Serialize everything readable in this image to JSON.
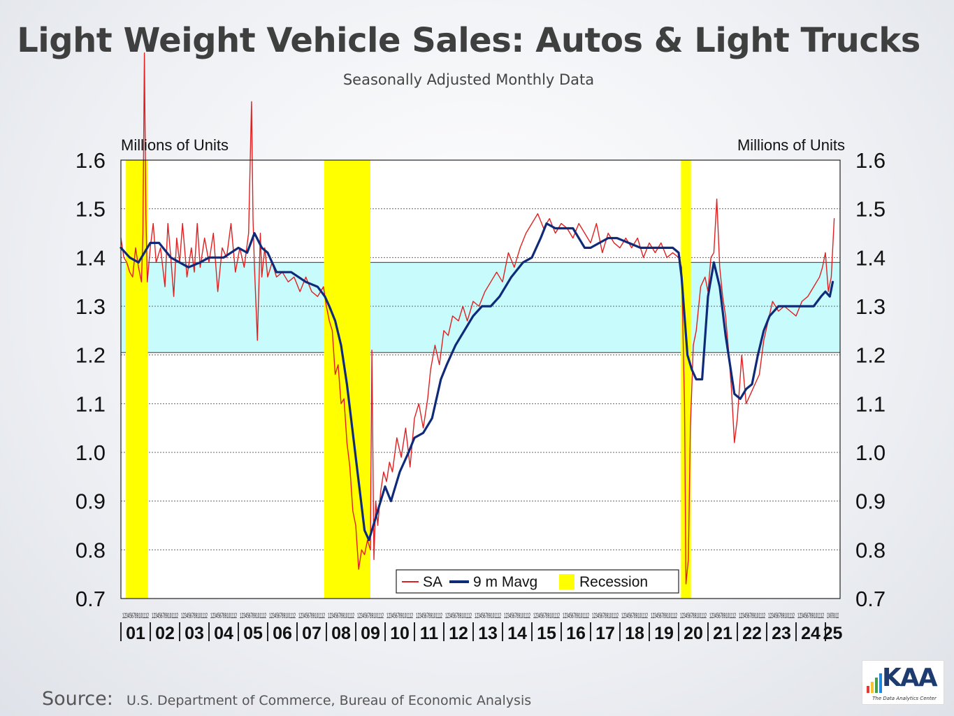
{
  "title": "Light Weight Vehicle Sales: Autos & Light Trucks",
  "subtitle": "Seasonally Adjusted Monthly Data",
  "source_label": "Source:",
  "source_text": "U.S. Department of Commerce, Bureau of Economic Analysis",
  "logo": {
    "word": "KAA",
    "tagline": "The Data Analytics Center"
  },
  "chart_data": {
    "type": "line",
    "left_axis_label": "Millions of Units",
    "right_axis_label": "Millions of Units",
    "ylim": [
      0.7,
      1.6
    ],
    "yticks": [
      "0.7",
      "0.8",
      "0.9",
      "1.0",
      "1.1",
      "1.2",
      "1.3",
      "1.4",
      "1.5",
      "1.6"
    ],
    "xlim": [
      2001.0,
      2025.5
    ],
    "year_labels": [
      "01",
      "02",
      "03",
      "04",
      "05",
      "06",
      "07",
      "08",
      "09",
      "10",
      "11",
      "12",
      "13",
      "14",
      "15",
      "16",
      "17",
      "18",
      "19",
      "20",
      "21",
      "22",
      "23",
      "24",
      "25"
    ],
    "month_tick_labels": [
      "1",
      "2",
      "3",
      "4",
      "5",
      "6",
      "7",
      "8",
      "9",
      "10",
      "11",
      "12"
    ],
    "shaded_band": {
      "from": 1.205,
      "to": 1.39,
      "color": "#c8fcfc"
    },
    "recessions": [
      [
        2001.17,
        2001.92
      ],
      [
        2007.92,
        2009.5
      ],
      [
        2020.08,
        2020.42
      ]
    ],
    "legend": {
      "position": "bottom-center",
      "items": [
        "SA",
        "9 m Mavg",
        "Recession"
      ]
    },
    "grid": true,
    "colors": {
      "sa": "#e02020",
      "mavg": "#102a7a",
      "recession": "#ffff00",
      "band": "#c8fcfc"
    },
    "series": [
      {
        "name": "SA",
        "x": [
          2001.0,
          2001.1,
          2001.2,
          2001.3,
          2001.4,
          2001.5,
          2001.6,
          2001.7,
          2001.75,
          2001.8,
          2001.85,
          2001.9,
          2002.0,
          2002.1,
          2002.2,
          2002.35,
          2002.5,
          2002.6,
          2002.7,
          2002.8,
          2002.9,
          2003.0,
          2003.1,
          2003.25,
          2003.4,
          2003.5,
          2003.6,
          2003.7,
          2003.85,
          2004.0,
          2004.15,
          2004.3,
          2004.45,
          2004.6,
          2004.75,
          2004.9,
          2005.05,
          2005.2,
          2005.35,
          2005.45,
          2005.5,
          2005.55,
          2005.65,
          2005.75,
          2005.8,
          2005.9,
          2006.0,
          2006.15,
          2006.3,
          2006.5,
          2006.7,
          2006.9,
          2007.1,
          2007.3,
          2007.5,
          2007.7,
          2007.9,
          2008.0,
          2008.1,
          2008.2,
          2008.3,
          2008.4,
          2008.5,
          2008.6,
          2008.7,
          2008.8,
          2008.9,
          2009.0,
          2009.1,
          2009.2,
          2009.3,
          2009.4,
          2009.5,
          2009.55,
          2009.62,
          2009.68,
          2009.75,
          2009.85,
          2009.95,
          2010.05,
          2010.15,
          2010.25,
          2010.4,
          2010.55,
          2010.7,
          2010.85,
          2011.0,
          2011.15,
          2011.3,
          2011.45,
          2011.55,
          2011.7,
          2011.85,
          2012.0,
          2012.15,
          2012.3,
          2012.5,
          2012.65,
          2012.8,
          2013.0,
          2013.2,
          2013.4,
          2013.6,
          2013.8,
          2014.0,
          2014.2,
          2014.4,
          2014.6,
          2014.8,
          2015.0,
          2015.2,
          2015.4,
          2015.6,
          2015.8,
          2016.0,
          2016.2,
          2016.4,
          2016.6,
          2016.8,
          2017.0,
          2017.2,
          2017.4,
          2017.6,
          2017.8,
          2018.0,
          2018.2,
          2018.4,
          2018.6,
          2018.8,
          2019.0,
          2019.2,
          2019.4,
          2019.6,
          2019.8,
          2020.0,
          2020.1,
          2020.2,
          2020.25,
          2020.33,
          2020.4,
          2020.5,
          2020.6,
          2020.75,
          2020.9,
          2021.0,
          2021.1,
          2021.2,
          2021.3,
          2021.4,
          2021.5,
          2021.6,
          2021.7,
          2021.8,
          2021.9,
          2022.0,
          2022.15,
          2022.3,
          2022.45,
          2022.6,
          2022.75,
          2022.9,
          2023.05,
          2023.2,
          2023.4,
          2023.6,
          2023.8,
          2024.0,
          2024.2,
          2024.4,
          2024.6,
          2024.8,
          2024.9,
          2025.0,
          2025.1,
          2025.2,
          2025.3
        ],
        "values": [
          1.44,
          1.4,
          1.39,
          1.37,
          1.36,
          1.42,
          1.38,
          1.35,
          1.45,
          1.82,
          1.49,
          1.35,
          1.42,
          1.47,
          1.39,
          1.42,
          1.34,
          1.47,
          1.4,
          1.32,
          1.44,
          1.39,
          1.47,
          1.36,
          1.42,
          1.37,
          1.47,
          1.38,
          1.44,
          1.39,
          1.45,
          1.33,
          1.42,
          1.4,
          1.47,
          1.37,
          1.42,
          1.38,
          1.45,
          1.72,
          1.48,
          1.38,
          1.23,
          1.45,
          1.36,
          1.42,
          1.36,
          1.39,
          1.36,
          1.37,
          1.35,
          1.36,
          1.33,
          1.36,
          1.33,
          1.32,
          1.34,
          1.3,
          1.27,
          1.25,
          1.16,
          1.18,
          1.1,
          1.11,
          1.02,
          0.97,
          0.88,
          0.85,
          0.76,
          0.8,
          0.79,
          0.82,
          0.8,
          1.21,
          0.78,
          0.9,
          0.85,
          0.92,
          0.96,
          0.94,
          0.98,
          0.96,
          1.03,
          0.99,
          1.05,
          0.97,
          1.07,
          1.1,
          1.05,
          1.11,
          1.17,
          1.22,
          1.18,
          1.25,
          1.24,
          1.28,
          1.27,
          1.3,
          1.27,
          1.31,
          1.3,
          1.33,
          1.35,
          1.37,
          1.35,
          1.41,
          1.38,
          1.42,
          1.45,
          1.47,
          1.49,
          1.46,
          1.48,
          1.45,
          1.47,
          1.46,
          1.44,
          1.47,
          1.45,
          1.43,
          1.47,
          1.41,
          1.45,
          1.43,
          1.42,
          1.44,
          1.42,
          1.44,
          1.4,
          1.43,
          1.41,
          1.43,
          1.4,
          1.41,
          1.4,
          1.38,
          1.1,
          0.73,
          0.78,
          1.05,
          1.22,
          1.25,
          1.34,
          1.36,
          1.33,
          1.4,
          1.41,
          1.52,
          1.38,
          1.32,
          1.28,
          1.21,
          1.13,
          1.02,
          1.07,
          1.2,
          1.1,
          1.12,
          1.14,
          1.16,
          1.23,
          1.27,
          1.31,
          1.29,
          1.3,
          1.29,
          1.28,
          1.31,
          1.32,
          1.34,
          1.36,
          1.38,
          1.41,
          1.33,
          1.36,
          1.48
        ],
        "color": "#e02020"
      },
      {
        "name": "9 m Mavg",
        "x": [
          2001.0,
          2001.3,
          2001.6,
          2002.0,
          2002.3,
          2002.7,
          2003.0,
          2003.3,
          2003.7,
          2004.0,
          2004.5,
          2005.0,
          2005.3,
          2005.55,
          2005.8,
          2006.0,
          2006.3,
          2006.8,
          2007.3,
          2007.7,
          2007.95,
          2008.1,
          2008.3,
          2008.5,
          2008.7,
          2008.9,
          2009.1,
          2009.3,
          2009.45,
          2009.6,
          2009.8,
          2010.0,
          2010.2,
          2010.5,
          2010.8,
          2011.0,
          2011.3,
          2011.6,
          2011.9,
          2012.1,
          2012.4,
          2012.7,
          2013.0,
          2013.3,
          2013.6,
          2013.9,
          2014.3,
          2014.7,
          2015.0,
          2015.3,
          2015.5,
          2015.8,
          2016.0,
          2016.4,
          2016.8,
          2017.0,
          2017.3,
          2017.6,
          2017.9,
          2018.3,
          2018.7,
          2019.0,
          2019.4,
          2019.8,
          2020.0,
          2020.1,
          2020.2,
          2020.3,
          2020.45,
          2020.6,
          2020.8,
          2021.0,
          2021.2,
          2021.4,
          2021.6,
          2021.8,
          2021.9,
          2022.1,
          2022.3,
          2022.5,
          2022.7,
          2022.9,
          2023.1,
          2023.4,
          2023.7,
          2024.0,
          2024.3,
          2024.6,
          2024.85,
          2025.0,
          2025.15,
          2025.25
        ],
        "values": [
          1.42,
          1.4,
          1.39,
          1.43,
          1.43,
          1.4,
          1.39,
          1.38,
          1.39,
          1.4,
          1.4,
          1.42,
          1.41,
          1.45,
          1.42,
          1.41,
          1.37,
          1.37,
          1.35,
          1.34,
          1.32,
          1.3,
          1.27,
          1.22,
          1.14,
          1.04,
          0.94,
          0.84,
          0.82,
          0.85,
          0.89,
          0.93,
          0.9,
          0.96,
          1.0,
          1.03,
          1.04,
          1.07,
          1.15,
          1.18,
          1.22,
          1.25,
          1.28,
          1.3,
          1.3,
          1.32,
          1.36,
          1.39,
          1.4,
          1.44,
          1.47,
          1.46,
          1.46,
          1.46,
          1.42,
          1.42,
          1.43,
          1.44,
          1.44,
          1.43,
          1.42,
          1.42,
          1.42,
          1.42,
          1.41,
          1.36,
          1.28,
          1.2,
          1.17,
          1.15,
          1.15,
          1.32,
          1.39,
          1.34,
          1.24,
          1.16,
          1.12,
          1.11,
          1.13,
          1.14,
          1.2,
          1.25,
          1.28,
          1.3,
          1.3,
          1.3,
          1.3,
          1.3,
          1.32,
          1.33,
          1.32,
          1.35
        ],
        "color": "#102a7a"
      }
    ]
  }
}
